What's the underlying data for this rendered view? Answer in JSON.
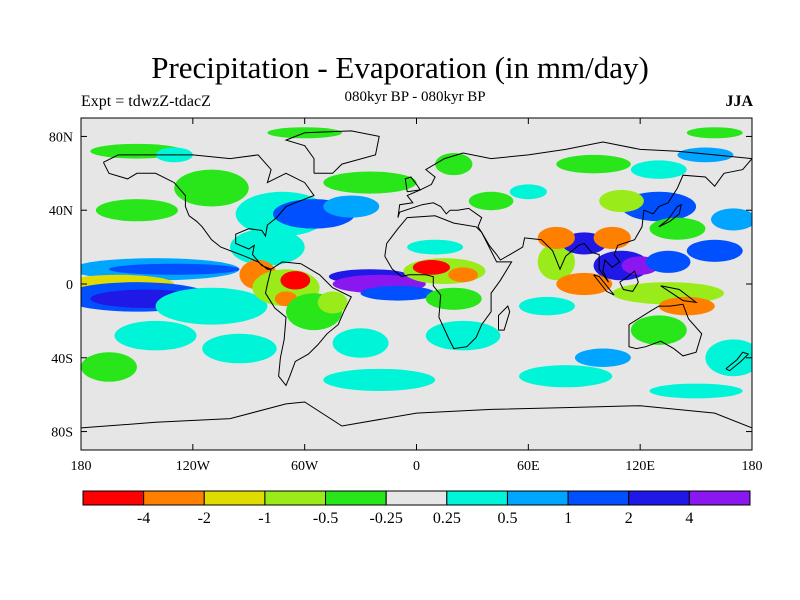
{
  "title": "Precipitation - Evaporation (in mm/day)",
  "subtitle": "080kyr BP - 080kyr BP",
  "experiment_label": "Expt = tdwzZ-tdacZ",
  "season": "JJA",
  "axes": {
    "lat_ticks": [
      {
        "value": 80,
        "label": "80N"
      },
      {
        "value": 40,
        "label": "40N"
      },
      {
        "value": 0,
        "label": "0"
      },
      {
        "value": -40,
        "label": "40S"
      },
      {
        "value": -80,
        "label": "80S"
      }
    ],
    "lon_ticks": [
      {
        "value": -180,
        "label": "180"
      },
      {
        "value": -120,
        "label": "120W"
      },
      {
        "value": -60,
        "label": "60W"
      },
      {
        "value": 0,
        "label": "0"
      },
      {
        "value": 60,
        "label": "60E"
      },
      {
        "value": 120,
        "label": "120E"
      },
      {
        "value": 180,
        "label": "180"
      }
    ],
    "lon_range": [
      -180,
      180
    ],
    "lat_range": [
      -90,
      90
    ]
  },
  "colorbar": {
    "colors": [
      "#ff0000",
      "#ff8000",
      "#e0dc00",
      "#9aeb1a",
      "#28e61a",
      "#e6e6e6",
      "#00f5d8",
      "#00a5ff",
      "#0050ff",
      "#2018e6",
      "#8a17f0"
    ],
    "labels": [
      "-4",
      "-2",
      "-1",
      "-0.5",
      "-0.25",
      "0.25",
      "0.5",
      "1",
      "2",
      "4"
    ]
  },
  "background_color": "#e6e6e6",
  "patches": [
    {
      "lon": -150,
      "lat": 72,
      "rx": 25,
      "ry": 4,
      "level": 4
    },
    {
      "lon": -130,
      "lat": 70,
      "rx": 10,
      "ry": 4,
      "level": 6
    },
    {
      "lon": -60,
      "lat": 82,
      "rx": 20,
      "ry": 3,
      "level": 4
    },
    {
      "lon": 160,
      "lat": 82,
      "rx": 15,
      "ry": 3,
      "level": 4
    },
    {
      "lon": 155,
      "lat": 70,
      "rx": 15,
      "ry": 4,
      "level": 7
    },
    {
      "lon": -72,
      "lat": 38,
      "rx": 25,
      "ry": 12,
      "level": 6
    },
    {
      "lon": -55,
      "lat": 38,
      "rx": 22,
      "ry": 8,
      "level": 8
    },
    {
      "lon": -35,
      "lat": 42,
      "rx": 15,
      "ry": 6,
      "level": 7
    },
    {
      "lon": -25,
      "lat": 55,
      "rx": 25,
      "ry": 6,
      "level": 4
    },
    {
      "lon": -110,
      "lat": 52,
      "rx": 20,
      "ry": 10,
      "level": 4
    },
    {
      "lon": -150,
      "lat": 40,
      "rx": 22,
      "ry": 6,
      "level": 4
    },
    {
      "lon": -80,
      "lat": 20,
      "rx": 20,
      "ry": 10,
      "level": 6
    },
    {
      "lon": -140,
      "lat": 8,
      "rx": 45,
      "ry": 6,
      "level": 7
    },
    {
      "lon": -130,
      "lat": 8,
      "rx": 35,
      "ry": 3,
      "level": 8
    },
    {
      "lon": -160,
      "lat": 0,
      "rx": 30,
      "ry": 5,
      "level": 2
    },
    {
      "lon": -150,
      "lat": -7,
      "rx": 40,
      "ry": 8,
      "level": 8
    },
    {
      "lon": -145,
      "lat": -8,
      "rx": 30,
      "ry": 5,
      "level": 9
    },
    {
      "lon": -110,
      "lat": -12,
      "rx": 30,
      "ry": 10,
      "level": 6
    },
    {
      "lon": -85,
      "lat": 5,
      "rx": 10,
      "ry": 8,
      "level": 1
    },
    {
      "lon": -70,
      "lat": -2,
      "rx": 18,
      "ry": 10,
      "level": 3
    },
    {
      "lon": -65,
      "lat": 2,
      "rx": 8,
      "ry": 5,
      "level": 0
    },
    {
      "lon": -70,
      "lat": -8,
      "rx": 6,
      "ry": 4,
      "level": 1
    },
    {
      "lon": -55,
      "lat": -15,
      "rx": 15,
      "ry": 10,
      "level": 4
    },
    {
      "lon": -45,
      "lat": -10,
      "rx": 8,
      "ry": 6,
      "level": 3
    },
    {
      "lon": -25,
      "lat": 4,
      "rx": 22,
      "ry": 4,
      "level": 9
    },
    {
      "lon": -20,
      "lat": 0,
      "rx": 25,
      "ry": 5,
      "level": 10
    },
    {
      "lon": -10,
      "lat": -5,
      "rx": 20,
      "ry": 4,
      "level": 8
    },
    {
      "lon": 15,
      "lat": 7,
      "rx": 22,
      "ry": 7,
      "level": 3
    },
    {
      "lon": 8,
      "lat": 9,
      "rx": 10,
      "ry": 4,
      "level": 0
    },
    {
      "lon": 25,
      "lat": 5,
      "rx": 8,
      "ry": 4,
      "level": 1
    },
    {
      "lon": 20,
      "lat": -8,
      "rx": 15,
      "ry": 6,
      "level": 4
    },
    {
      "lon": 10,
      "lat": 20,
      "rx": 15,
      "ry": 4,
      "level": 6
    },
    {
      "lon": -140,
      "lat": -28,
      "rx": 22,
      "ry": 8,
      "level": 6
    },
    {
      "lon": -95,
      "lat": -35,
      "rx": 20,
      "ry": 8,
      "level": 6
    },
    {
      "lon": -30,
      "lat": -32,
      "rx": 15,
      "ry": 8,
      "level": 6
    },
    {
      "lon": 25,
      "lat": -28,
      "rx": 20,
      "ry": 8,
      "level": 6
    },
    {
      "lon": -20,
      "lat": -52,
      "rx": 30,
      "ry": 6,
      "level": 6
    },
    {
      "lon": 80,
      "lat": -50,
      "rx": 25,
      "ry": 6,
      "level": 6
    },
    {
      "lon": 100,
      "lat": -40,
      "rx": 15,
      "ry": 5,
      "level": 7
    },
    {
      "lon": 170,
      "lat": -40,
      "rx": 15,
      "ry": 10,
      "level": 6
    },
    {
      "lon": -165,
      "lat": -45,
      "rx": 15,
      "ry": 8,
      "level": 4
    },
    {
      "lon": 150,
      "lat": -58,
      "rx": 25,
      "ry": 4,
      "level": 6
    },
    {
      "lon": 70,
      "lat": -12,
      "rx": 15,
      "ry": 5,
      "level": 6
    },
    {
      "lon": 75,
      "lat": 12,
      "rx": 10,
      "ry": 10,
      "level": 3
    },
    {
      "lon": 90,
      "lat": 0,
      "rx": 15,
      "ry": 6,
      "level": 1
    },
    {
      "lon": 90,
      "lat": 22,
      "rx": 12,
      "ry": 6,
      "level": 9
    },
    {
      "lon": 75,
      "lat": 25,
      "rx": 10,
      "ry": 6,
      "level": 1
    },
    {
      "lon": 105,
      "lat": 25,
      "rx": 10,
      "ry": 6,
      "level": 1
    },
    {
      "lon": 110,
      "lat": 10,
      "rx": 15,
      "ry": 8,
      "level": 9
    },
    {
      "lon": 120,
      "lat": 10,
      "rx": 10,
      "ry": 5,
      "level": 10
    },
    {
      "lon": 135,
      "lat": 12,
      "rx": 12,
      "ry": 6,
      "level": 8
    },
    {
      "lon": 135,
      "lat": -5,
      "rx": 30,
      "ry": 6,
      "level": 3
    },
    {
      "lon": 145,
      "lat": -12,
      "rx": 15,
      "ry": 5,
      "level": 1
    },
    {
      "lon": 130,
      "lat": 42,
      "rx": 20,
      "ry": 8,
      "level": 8
    },
    {
      "lon": 140,
      "lat": 30,
      "rx": 15,
      "ry": 6,
      "level": 4
    },
    {
      "lon": 110,
      "lat": 45,
      "rx": 12,
      "ry": 6,
      "level": 3
    },
    {
      "lon": 160,
      "lat": 18,
      "rx": 15,
      "ry": 6,
      "level": 8
    },
    {
      "lon": 170,
      "lat": 35,
      "rx": 12,
      "ry": 6,
      "level": 7
    },
    {
      "lon": 130,
      "lat": -25,
      "rx": 15,
      "ry": 8,
      "level": 4
    },
    {
      "lon": 40,
      "lat": 45,
      "rx": 12,
      "ry": 5,
      "level": 4
    },
    {
      "lon": 60,
      "lat": 50,
      "rx": 10,
      "ry": 4,
      "level": 6
    },
    {
      "lon": 95,
      "lat": 65,
      "rx": 20,
      "ry": 5,
      "level": 4
    },
    {
      "lon": 130,
      "lat": 62,
      "rx": 15,
      "ry": 5,
      "level": 6
    },
    {
      "lon": 20,
      "lat": 65,
      "rx": 10,
      "ry": 6,
      "level": 4
    }
  ]
}
